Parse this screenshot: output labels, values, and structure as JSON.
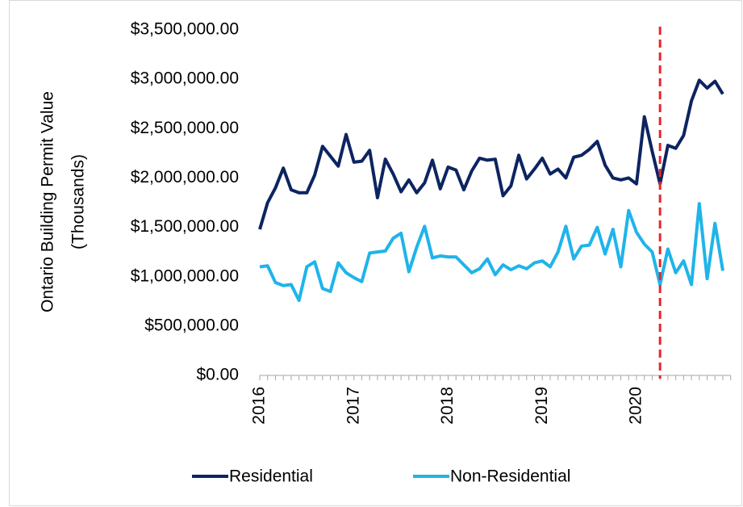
{
  "chart_data": {
    "type": "line",
    "ylabel": [
      "Ontario Building Permit Value",
      "(Thousands)"
    ],
    "categories": [
      "2016",
      null,
      null,
      null,
      null,
      null,
      null,
      null,
      null,
      null,
      null,
      null,
      "2017",
      null,
      null,
      null,
      null,
      null,
      null,
      null,
      null,
      null,
      null,
      null,
      "2018",
      null,
      null,
      null,
      null,
      null,
      null,
      null,
      null,
      null,
      null,
      null,
      "2019",
      null,
      null,
      null,
      null,
      null,
      null,
      null,
      null,
      null,
      null,
      null,
      "2020",
      null,
      null,
      null,
      null,
      null,
      null,
      null,
      null,
      null,
      null,
      null
    ],
    "series": [
      {
        "name": "Residential",
        "color": "#0d2461",
        "values": [
          1480000,
          1750000,
          1900000,
          2100000,
          1880000,
          1850000,
          1850000,
          2030000,
          2320000,
          2220000,
          2120000,
          2440000,
          2160000,
          2170000,
          2280000,
          1800000,
          2190000,
          2040000,
          1860000,
          1980000,
          1850000,
          1950000,
          2180000,
          1890000,
          2110000,
          2080000,
          1880000,
          2070000,
          2200000,
          2180000,
          2190000,
          1820000,
          1920000,
          2230000,
          1990000,
          2090000,
          2200000,
          2040000,
          2090000,
          2000000,
          2210000,
          2230000,
          2290000,
          2370000,
          2130000,
          2000000,
          1980000,
          2000000,
          1940000,
          2620000,
          2270000,
          1940000,
          2330000,
          2300000,
          2430000,
          2780000,
          2990000,
          2910000,
          2980000,
          2850000
        ]
      },
      {
        "name": "Non-Residential",
        "color": "#1fb4ea",
        "values": [
          1100000,
          1110000,
          940000,
          910000,
          920000,
          760000,
          1100000,
          1150000,
          880000,
          850000,
          1140000,
          1040000,
          990000,
          950000,
          1240000,
          1250000,
          1260000,
          1390000,
          1440000,
          1050000,
          1300000,
          1510000,
          1190000,
          1210000,
          1200000,
          1200000,
          1120000,
          1040000,
          1080000,
          1180000,
          1020000,
          1120000,
          1070000,
          1110000,
          1080000,
          1140000,
          1160000,
          1100000,
          1250000,
          1510000,
          1180000,
          1310000,
          1320000,
          1500000,
          1230000,
          1480000,
          1100000,
          1670000,
          1450000,
          1330000,
          1250000,
          920000,
          1280000,
          1040000,
          1160000,
          920000,
          1740000,
          980000,
          1540000,
          1060000
        ]
      }
    ],
    "ylim": [
      0,
      3500000
    ],
    "yticks": [
      {
        "value": 0,
        "label": "$0.00"
      },
      {
        "value": 500000,
        "label": "$500,000.00"
      },
      {
        "value": 1000000,
        "label": "$1,000,000.00"
      },
      {
        "value": 1500000,
        "label": "$1,500,000.00"
      },
      {
        "value": 2000000,
        "label": "$2,000,000.00"
      },
      {
        "value": 2500000,
        "label": "$2,500,000.00"
      },
      {
        "value": 3000000,
        "label": "$3,000,000.00"
      },
      {
        "value": 3500000,
        "label": "$3,500,000.00"
      }
    ],
    "vline": {
      "index": 51,
      "color": "#e8262a"
    },
    "legend": "bottom",
    "grid": false
  }
}
